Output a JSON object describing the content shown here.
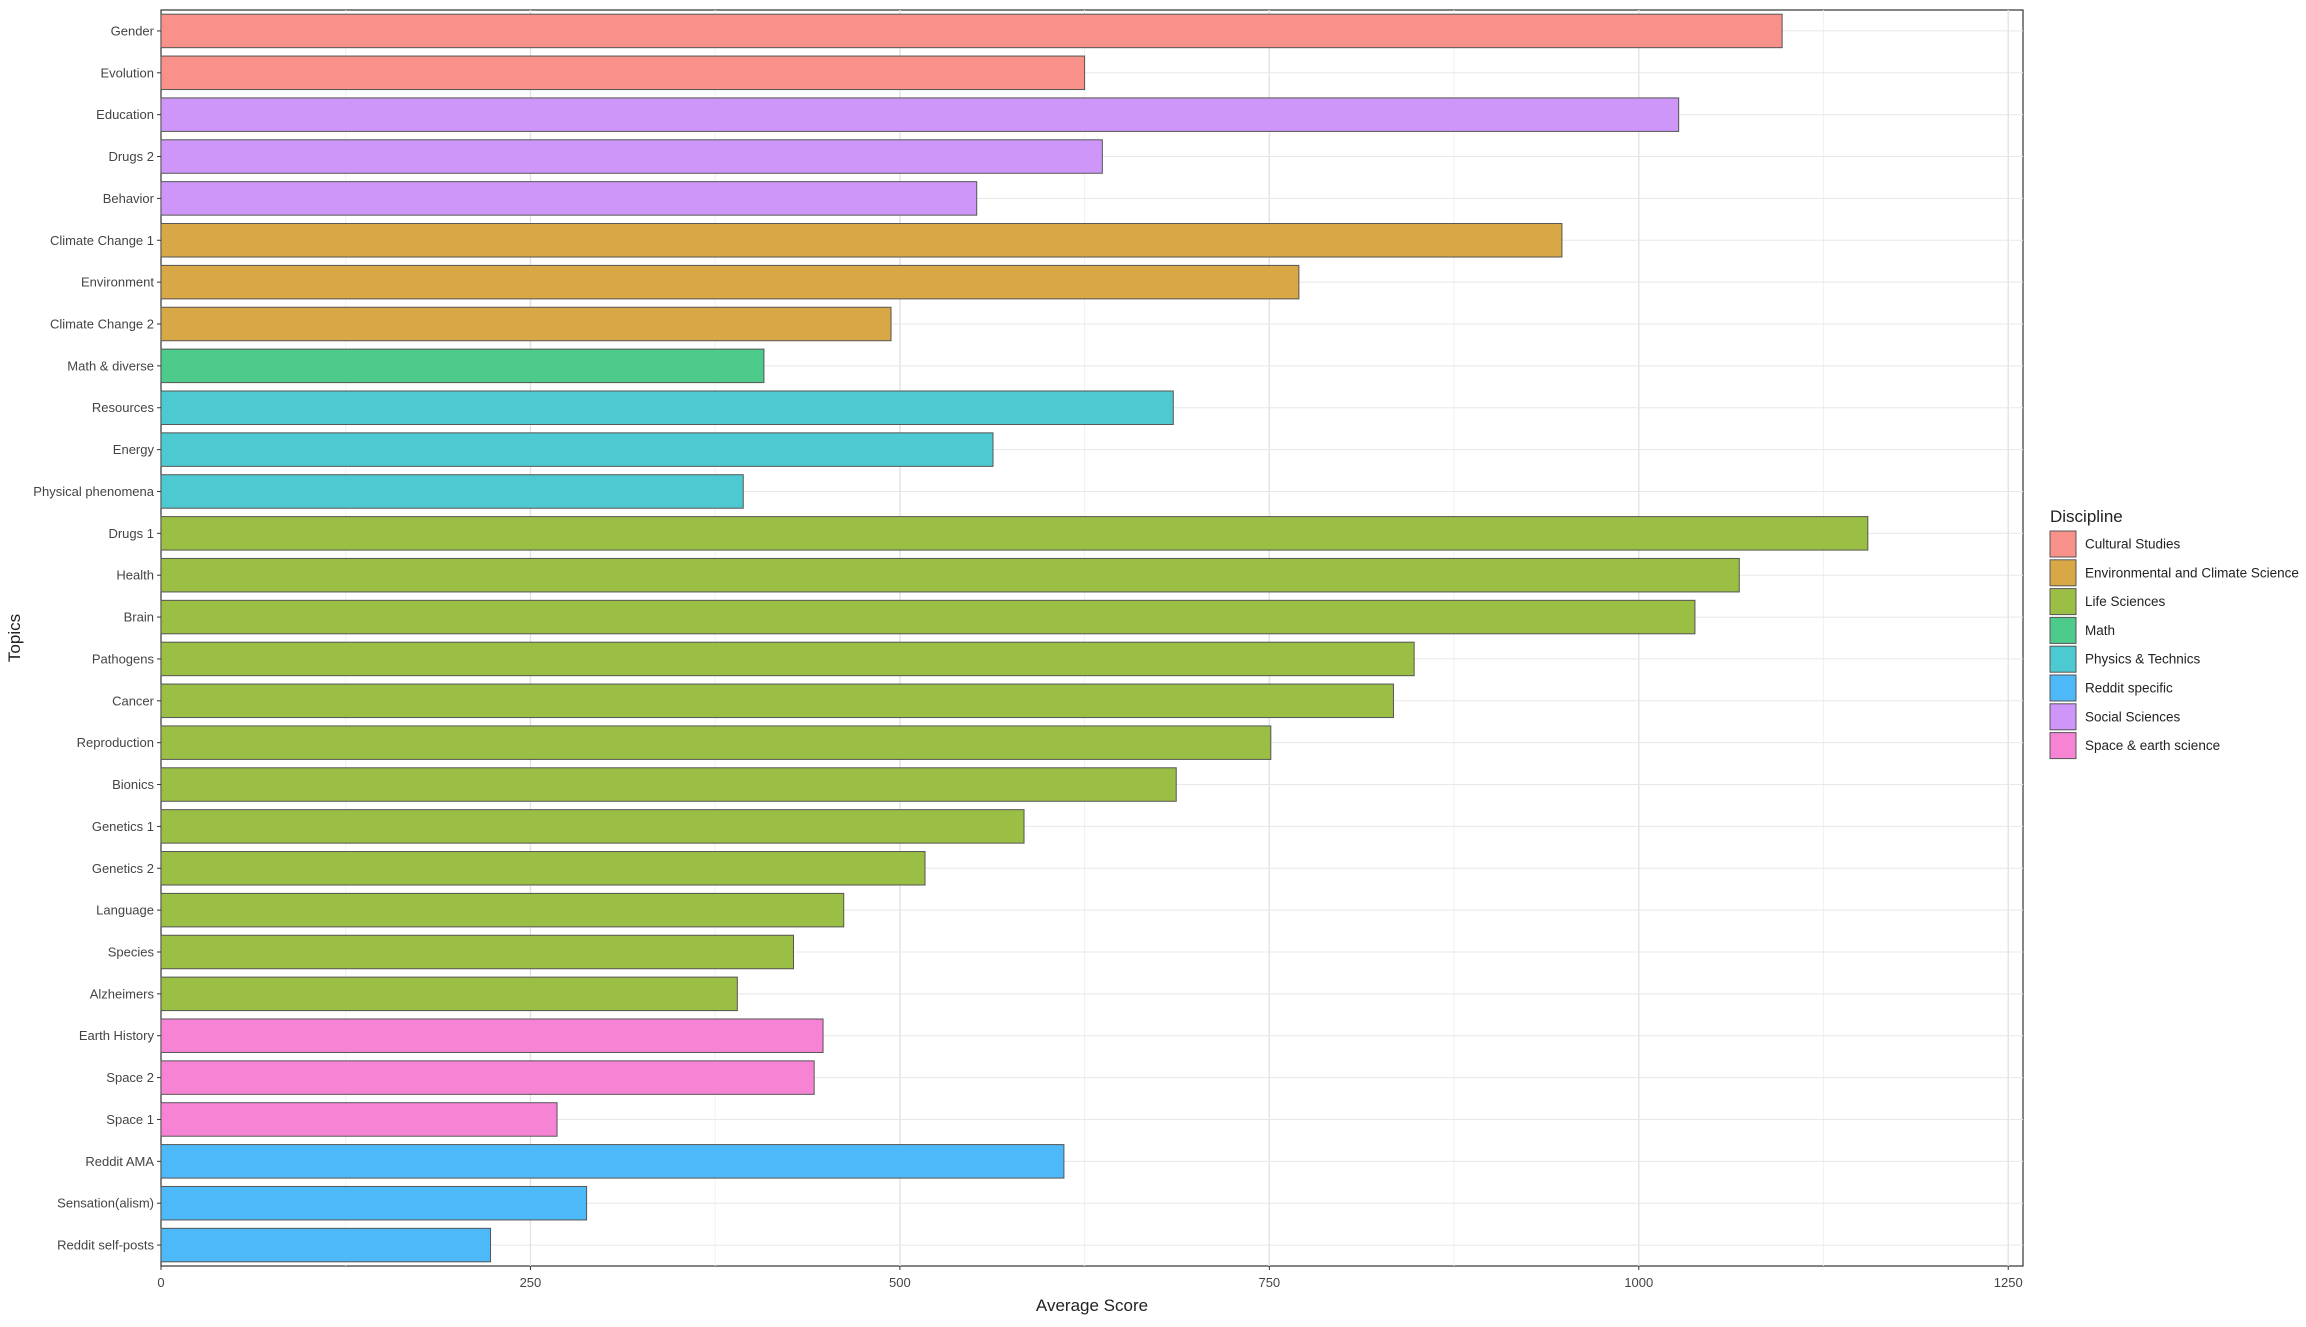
{
  "chart_data": {
    "type": "bar",
    "orientation": "horizontal",
    "xlabel": "Average Score",
    "ylabel": "Topics",
    "xlim": [
      0,
      1260
    ],
    "x_ticks": [
      0,
      250,
      500,
      750,
      1000,
      1250
    ],
    "grid": true,
    "legend_position": "right",
    "legend": {
      "title": "Discipline",
      "entries": [
        {
          "name": "Cultural Studies",
          "color": "#F8918A"
        },
        {
          "name": "Environmental and Climate Science",
          "color": "#D9A846"
        },
        {
          "name": "Life Sciences",
          "color": "#9BBE45"
        },
        {
          "name": "Math",
          "color": "#4CCB8B"
        },
        {
          "name": "Physics & Technics",
          "color": "#4DCAD1"
        },
        {
          "name": "Reddit specific",
          "color": "#4DB9F8"
        },
        {
          "name": "Social Sciences",
          "color": "#CE96F8"
        },
        {
          "name": "Space & earth science",
          "color": "#F783D5"
        }
      ]
    },
    "bars": [
      {
        "topic": "Gender",
        "value": 1097,
        "discipline": "Cultural Studies"
      },
      {
        "topic": "Evolution",
        "value": 625,
        "discipline": "Cultural Studies"
      },
      {
        "topic": "Education",
        "value": 1027,
        "discipline": "Social Sciences"
      },
      {
        "topic": "Drugs 2",
        "value": 637,
        "discipline": "Social Sciences"
      },
      {
        "topic": "Behavior",
        "value": 552,
        "discipline": "Social Sciences"
      },
      {
        "topic": "Climate Change 1",
        "value": 948,
        "discipline": "Environmental and Climate Science"
      },
      {
        "topic": "Environment",
        "value": 770,
        "discipline": "Environmental and Climate Science"
      },
      {
        "topic": "Climate Change 2",
        "value": 494,
        "discipline": "Environmental and Climate Science"
      },
      {
        "topic": "Math & diverse",
        "value": 408,
        "discipline": "Math"
      },
      {
        "topic": "Resources",
        "value": 685,
        "discipline": "Physics & Technics"
      },
      {
        "topic": "Energy",
        "value": 563,
        "discipline": "Physics & Technics"
      },
      {
        "topic": "Physical phenomena",
        "value": 394,
        "discipline": "Physics & Technics"
      },
      {
        "topic": "Drugs 1",
        "value": 1155,
        "discipline": "Life Sciences"
      },
      {
        "topic": "Health",
        "value": 1068,
        "discipline": "Life Sciences"
      },
      {
        "topic": "Brain",
        "value": 1038,
        "discipline": "Life Sciences"
      },
      {
        "topic": "Pathogens",
        "value": 848,
        "discipline": "Life Sciences"
      },
      {
        "topic": "Cancer",
        "value": 834,
        "discipline": "Life Sciences"
      },
      {
        "topic": "Reproduction",
        "value": 751,
        "discipline": "Life Sciences"
      },
      {
        "topic": "Bionics",
        "value": 687,
        "discipline": "Life Sciences"
      },
      {
        "topic": "Genetics 1",
        "value": 584,
        "discipline": "Life Sciences"
      },
      {
        "topic": "Genetics 2",
        "value": 517,
        "discipline": "Life Sciences"
      },
      {
        "topic": "Language",
        "value": 462,
        "discipline": "Life Sciences"
      },
      {
        "topic": "Species",
        "value": 428,
        "discipline": "Life Sciences"
      },
      {
        "topic": "Alzheimers",
        "value": 390,
        "discipline": "Life Sciences"
      },
      {
        "topic": "Earth History",
        "value": 448,
        "discipline": "Space & earth science"
      },
      {
        "topic": "Space 2",
        "value": 442,
        "discipline": "Space & earth science"
      },
      {
        "topic": "Space 1",
        "value": 268,
        "discipline": "Space & earth science"
      },
      {
        "topic": "Reddit AMA",
        "value": 611,
        "discipline": "Reddit specific"
      },
      {
        "topic": "Sensation(alism)",
        "value": 288,
        "discipline": "Reddit specific"
      },
      {
        "topic": "Reddit self-posts",
        "value": 223,
        "discipline": "Reddit specific"
      }
    ]
  }
}
